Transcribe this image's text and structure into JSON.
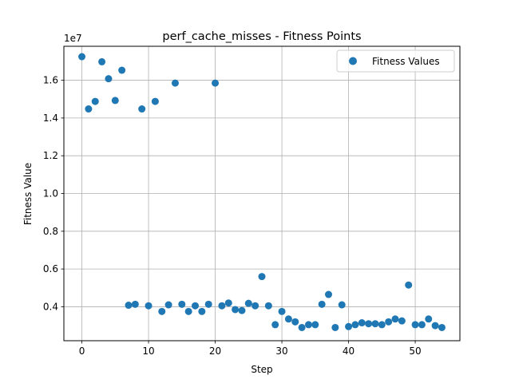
{
  "chart_data": {
    "type": "scatter",
    "title": "perf_cache_misses - Fitness Points",
    "xlabel": "Step",
    "ylabel": "Fitness Value",
    "y_offset_text": "1e7",
    "y_multiplier": 10000000,
    "xlim": [
      -2.7,
      56.7
    ],
    "ylim": [
      0.22,
      1.78
    ],
    "xticks": [
      0,
      10,
      20,
      30,
      40,
      50
    ],
    "yticks": [
      0.4,
      0.6,
      0.8,
      1.0,
      1.2,
      1.4,
      1.6
    ],
    "ytick_labels": [
      "0.4",
      "0.6",
      "0.8",
      "1.0",
      "1.2",
      "1.4",
      "1.6"
    ],
    "grid": true,
    "legend_position": "top-right",
    "series": [
      {
        "name": "Fitness Values",
        "color": "#1f77b4",
        "x": [
          0,
          1,
          2,
          3,
          4,
          5,
          6,
          7,
          8,
          9,
          10,
          11,
          12,
          13,
          14,
          15,
          16,
          17,
          18,
          19,
          20,
          21,
          22,
          23,
          24,
          25,
          26,
          27,
          28,
          29,
          30,
          31,
          32,
          33,
          34,
          35,
          36,
          37,
          38,
          39,
          40,
          41,
          42,
          43,
          44,
          45,
          46,
          47,
          48,
          49,
          50,
          51,
          52,
          53,
          54
        ],
        "y": [
          1.725,
          1.448,
          1.488,
          1.698,
          1.608,
          1.493,
          1.653,
          0.408,
          0.413,
          1.448,
          0.405,
          1.488,
          0.375,
          0.41,
          1.585,
          0.413,
          0.375,
          0.405,
          0.375,
          0.413,
          1.585,
          0.405,
          0.42,
          0.385,
          0.38,
          0.418,
          0.405,
          0.56,
          0.405,
          0.305,
          0.375,
          0.335,
          0.32,
          0.29,
          0.305,
          0.305,
          0.413,
          0.465,
          0.29,
          0.41,
          0.295,
          0.305,
          0.315,
          0.31,
          0.31,
          0.305,
          0.32,
          0.335,
          0.325,
          0.515,
          0.305,
          0.305,
          0.335,
          0.3,
          0.29
        ]
      }
    ]
  }
}
